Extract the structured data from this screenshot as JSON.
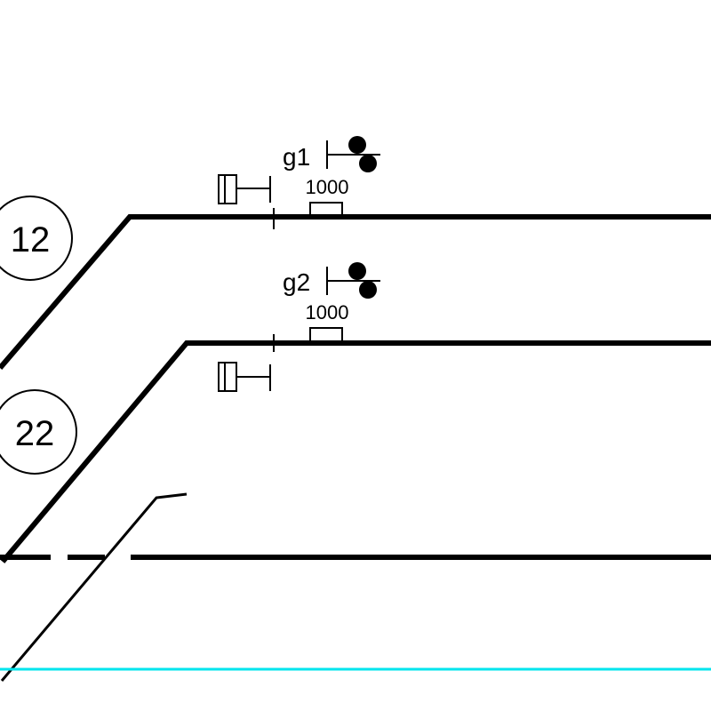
{
  "tracks": [
    {
      "number": "12"
    },
    {
      "number": "22"
    }
  ],
  "signals": [
    {
      "name": "g1",
      "distance": "1000"
    },
    {
      "name": "g2",
      "distance": "1000"
    }
  ],
  "colors": {
    "track": "#000000",
    "reference_line": "#00e5ee",
    "background": "#ffffff"
  }
}
